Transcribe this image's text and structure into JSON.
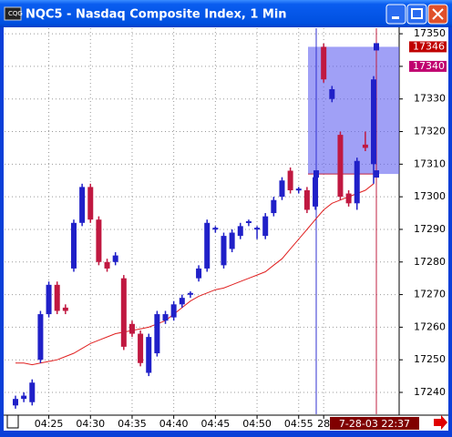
{
  "window": {
    "title": "NQC5 - Nasdaq Composite Index, 1 Min"
  },
  "chart_data": {
    "type": "candlestick",
    "categories": [
      null,
      null,
      null,
      null,
      "04:25",
      null,
      null,
      null,
      null,
      "04:30",
      null,
      null,
      null,
      null,
      "04:35",
      null,
      null,
      null,
      null,
      "04:40",
      null,
      null,
      null,
      null,
      "04:45",
      null,
      null,
      null,
      null,
      "04:50",
      null,
      null,
      null,
      null,
      "04:55",
      null,
      null,
      "28",
      null,
      null,
      null,
      null,
      null,
      null
    ],
    "open": [
      17236,
      17238,
      17237,
      17250,
      17264,
      17273,
      17266,
      17278,
      17292,
      17303,
      17293,
      17280,
      17280,
      17275,
      17261,
      17258,
      17246,
      17252,
      17262,
      17263,
      17267,
      17270,
      17275,
      17278,
      17290,
      17279,
      17284,
      17288,
      17292,
      17290,
      17288,
      17295,
      17300,
      17308,
      17302,
      17302,
      17297,
      17346,
      17330,
      17319,
      17301,
      17298,
      17316,
      17310
    ],
    "high": [
      17239,
      17240,
      17244,
      17265,
      17274,
      17274,
      17267,
      17293,
      17304,
      17304,
      17294,
      17281,
      17283,
      17276,
      17262,
      17259,
      17258,
      17265,
      17265,
      17268,
      17270,
      17271,
      17279,
      17293,
      17291,
      17289,
      17290,
      17292,
      17293,
      17291,
      17295,
      17300,
      17306,
      17309,
      17303,
      17303,
      17307,
      17347,
      17334,
      17320,
      17302,
      17312,
      17320,
      17337
    ],
    "low": [
      17235,
      17237,
      17236,
      17249,
      17263,
      17264,
      17264,
      17277,
      17291,
      17292,
      17279,
      17277,
      17279,
      17253,
      17257,
      17248,
      17245,
      17251,
      17261,
      17262,
      17266,
      17269,
      17274,
      17277,
      17289,
      17278,
      17283,
      17287,
      17291,
      17287,
      17287,
      17294,
      17299,
      17301,
      17301,
      17295,
      17296,
      17335,
      17329,
      17299,
      17297,
      17296,
      17314,
      17304
    ],
    "close": [
      17238,
      17239,
      17243,
      17264,
      17273,
      17265,
      17265,
      17292,
      17303,
      17293,
      17280,
      17278,
      17282,
      17254,
      17258,
      17249,
      17257,
      17264,
      17264,
      17267,
      17269,
      17270.5,
      17278,
      17292,
      17290.5,
      17288,
      17289,
      17291,
      17292.5,
      17290.5,
      17294,
      17299,
      17305,
      17302,
      17302.5,
      17296,
      17306,
      17336,
      17333,
      17300,
      17298,
      17311,
      17315,
      17336
    ],
    "moving_average": [
      17249,
      17249,
      17248.5,
      17249,
      17249.5,
      17250,
      17251,
      17252,
      17253.5,
      17255,
      17256,
      17257,
      17258,
      17258.5,
      17259,
      17259.5,
      17260,
      17261,
      17262,
      17264,
      17266,
      17268,
      17269.5,
      17270.5,
      17271.5,
      17272,
      17273,
      17274,
      17275,
      17276,
      17277,
      17279,
      17281,
      17284,
      17287,
      17290,
      17293,
      17296,
      17298,
      17299,
      17300,
      17301,
      17302,
      17304
    ],
    "up_color": "#2020c8",
    "down_color": "#c01840",
    "ma_color": "#e02020",
    "ylim": [
      17233.3,
      17351.7
    ],
    "yticks": [
      17240,
      17250,
      17260,
      17270,
      17280,
      17290,
      17300,
      17310,
      17320,
      17330,
      17340,
      17350
    ],
    "grid": true,
    "price_markers": [
      17346,
      17340
    ],
    "selection_low": 17307,
    "time_label": "7-28-03 22:37"
  }
}
